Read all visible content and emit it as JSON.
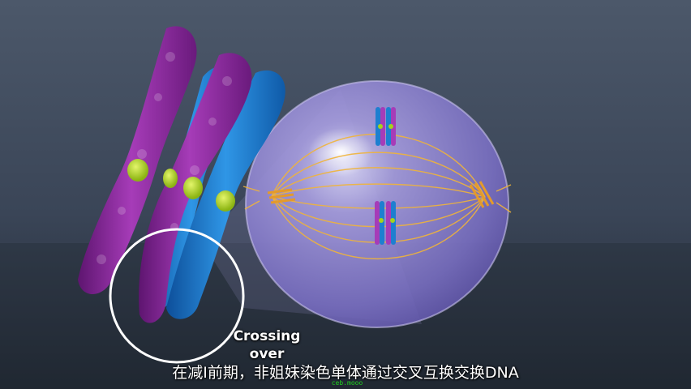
{
  "image": {
    "description_colors": {
      "background_top": "#4a5567",
      "background_bottom": "#242c38",
      "chromatid_magenta": "#8c2a9a",
      "chromatid_blue": "#1e7fd0",
      "centromere_green": "#a6d21c",
      "cell_lilac": "#9a8fd6",
      "spindle_yellow": "#f0b43a"
    }
  },
  "annotation": {
    "callout_label": "Crossing\nover"
  },
  "caption": {
    "subtitle": "在减I前期，非姐妹染色单体通过交叉互换交换DNA",
    "watermark": "ceb.mooo"
  }
}
